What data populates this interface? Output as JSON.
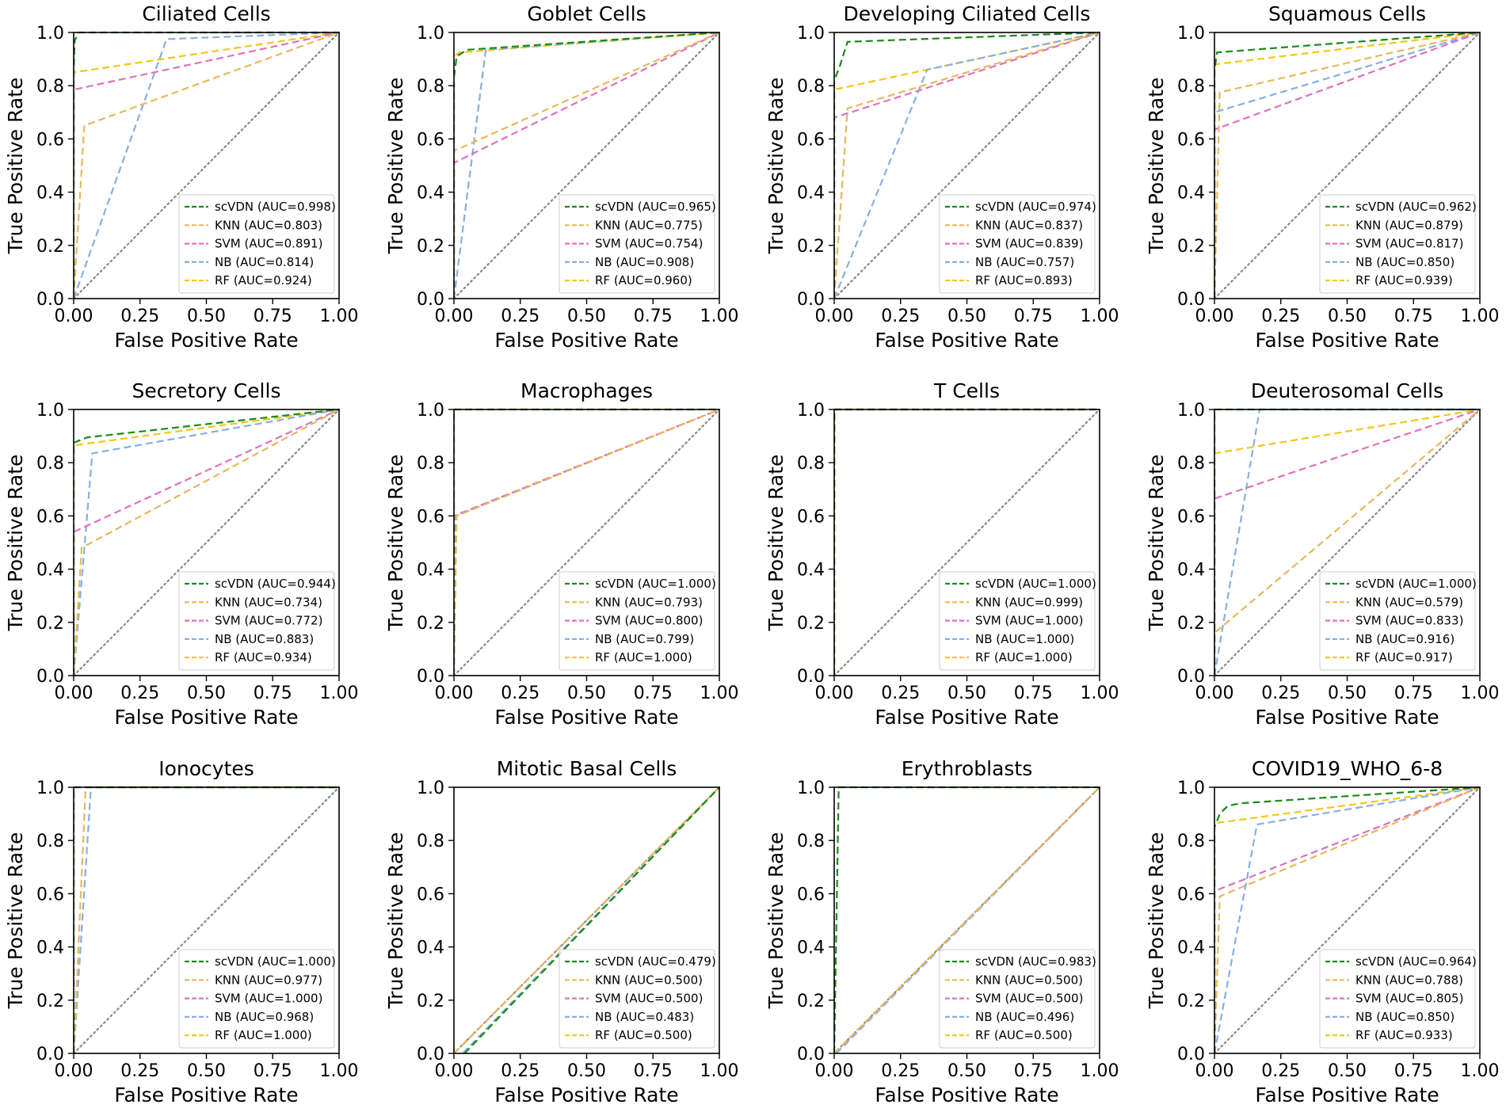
{
  "figure": {
    "xlabel": "False Positive Rate",
    "ylabel": "True Positive Rate",
    "xticks": [
      "0.00",
      "0.25",
      "0.50",
      "0.75",
      "1.00"
    ],
    "yticks": [
      "0.0",
      "0.2",
      "0.4",
      "0.6",
      "0.8",
      "1.0"
    ],
    "series_names": [
      "scVDN",
      "KNN",
      "SVM",
      "NB",
      "RF"
    ],
    "series_colors": [
      "#1a8a1a",
      "#e8b75a",
      "#e070c0",
      "#88aee0",
      "#f5c518"
    ],
    "diagonal_color": "#888888",
    "layout": {
      "rows": 3,
      "cols": 4
    }
  },
  "chart_data": [
    {
      "type": "line",
      "title": "Ciliated Cells",
      "xlim": [
        0,
        1
      ],
      "ylim": [
        0,
        1
      ],
      "grid": false,
      "legend_position": "lower-right",
      "series": [
        {
          "name": "scVDN",
          "auc": "0.998",
          "legend": "scVDN (AUC=0.998)",
          "x": [
            0,
            0,
            0.004,
            0.02,
            1
          ],
          "y": [
            0,
            0.86,
            0.97,
            1.0,
            1.0
          ]
        },
        {
          "name": "KNN",
          "auc": "0.803",
          "legend": "KNN (AUC=0.803)",
          "x": [
            0,
            0.04,
            1
          ],
          "y": [
            0,
            0.65,
            1.0
          ]
        },
        {
          "name": "SVM",
          "auc": "0.891",
          "legend": "SVM (AUC=0.891)",
          "x": [
            0,
            0,
            1
          ],
          "y": [
            0,
            0.785,
            1.0
          ]
        },
        {
          "name": "NB",
          "auc": "0.814",
          "legend": "NB (AUC=0.814)",
          "x": [
            0,
            0.35,
            1
          ],
          "y": [
            0,
            0.975,
            1.0
          ]
        },
        {
          "name": "RF",
          "auc": "0.924",
          "legend": "RF (AUC=0.924)",
          "x": [
            0,
            0,
            1
          ],
          "y": [
            0,
            0.85,
            1.0
          ]
        }
      ]
    },
    {
      "type": "line",
      "title": "Goblet Cells",
      "xlim": [
        0,
        1
      ],
      "ylim": [
        0,
        1
      ],
      "grid": false,
      "legend_position": "lower-right",
      "series": [
        {
          "name": "scVDN",
          "auc": "0.965",
          "legend": "scVDN (AUC=0.965)",
          "x": [
            0,
            0,
            0.01,
            0.05,
            1
          ],
          "y": [
            0,
            0.83,
            0.91,
            0.935,
            1.0
          ]
        },
        {
          "name": "KNN",
          "auc": "0.775",
          "legend": "KNN (AUC=0.775)",
          "x": [
            0,
            0,
            1
          ],
          "y": [
            0,
            0.555,
            1.0
          ]
        },
        {
          "name": "SVM",
          "auc": "0.754",
          "legend": "SVM (AUC=0.754)",
          "x": [
            0,
            0,
            1
          ],
          "y": [
            0,
            0.51,
            1.0
          ]
        },
        {
          "name": "NB",
          "auc": "0.908",
          "legend": "NB (AUC=0.908)",
          "x": [
            0,
            0.12,
            1
          ],
          "y": [
            0,
            0.935,
            1.0
          ]
        },
        {
          "name": "RF",
          "auc": "0.960",
          "legend": "RF (AUC=0.960)",
          "x": [
            0,
            0,
            0.02,
            1
          ],
          "y": [
            0,
            0.91,
            0.925,
            1.0
          ]
        }
      ]
    },
    {
      "type": "line",
      "title": "Developing Ciliated Cells",
      "xlim": [
        0,
        1
      ],
      "ylim": [
        0,
        1
      ],
      "grid": false,
      "legend_position": "lower-right",
      "series": [
        {
          "name": "scVDN",
          "auc": "0.974",
          "legend": "scVDN (AUC=0.974)",
          "x": [
            0,
            0,
            0.02,
            0.05,
            1
          ],
          "y": [
            0,
            0.82,
            0.87,
            0.965,
            1.0
          ]
        },
        {
          "name": "KNN",
          "auc": "0.837",
          "legend": "KNN (AUC=0.837)",
          "x": [
            0,
            0.05,
            1
          ],
          "y": [
            0,
            0.715,
            1.0
          ]
        },
        {
          "name": "SVM",
          "auc": "0.839",
          "legend": "SVM (AUC=0.839)",
          "x": [
            0,
            0,
            1
          ],
          "y": [
            0,
            0.68,
            1.0
          ]
        },
        {
          "name": "NB",
          "auc": "0.757",
          "legend": "NB (AUC=0.757)",
          "x": [
            0,
            0.35,
            1
          ],
          "y": [
            0,
            0.86,
            1.0
          ]
        },
        {
          "name": "RF",
          "auc": "0.893",
          "legend": "RF (AUC=0.893)",
          "x": [
            0,
            0,
            1
          ],
          "y": [
            0,
            0.785,
            1.0
          ]
        }
      ]
    },
    {
      "type": "line",
      "title": "Squamous Cells",
      "xlim": [
        0,
        1
      ],
      "ylim": [
        0,
        1
      ],
      "grid": false,
      "legend_position": "lower-right",
      "series": [
        {
          "name": "scVDN",
          "auc": "0.962",
          "legend": "scVDN (AUC=0.962)",
          "x": [
            0,
            0,
            0.01,
            1
          ],
          "y": [
            0,
            0.86,
            0.925,
            1.0
          ]
        },
        {
          "name": "KNN",
          "auc": "0.879",
          "legend": "KNN (AUC=0.879)",
          "x": [
            0,
            0.02,
            1
          ],
          "y": [
            0,
            0.775,
            1.0
          ]
        },
        {
          "name": "SVM",
          "auc": "0.817",
          "legend": "SVM (AUC=0.817)",
          "x": [
            0,
            0,
            1
          ],
          "y": [
            0,
            0.635,
            1.0
          ]
        },
        {
          "name": "NB",
          "auc": "0.850",
          "legend": "NB (AUC=0.850)",
          "x": [
            0,
            0,
            1
          ],
          "y": [
            0,
            0.7,
            1.0
          ]
        },
        {
          "name": "RF",
          "auc": "0.939",
          "legend": "RF (AUC=0.939)",
          "x": [
            0,
            0,
            1
          ],
          "y": [
            0,
            0.88,
            1.0
          ]
        }
      ]
    },
    {
      "type": "line",
      "title": "Secretory Cells",
      "xlim": [
        0,
        1
      ],
      "ylim": [
        0,
        1
      ],
      "grid": false,
      "legend_position": "lower-right",
      "series": [
        {
          "name": "scVDN",
          "auc": "0.944",
          "legend": "scVDN (AUC=0.944)",
          "x": [
            0,
            0,
            0.05,
            1
          ],
          "y": [
            0,
            0.875,
            0.895,
            1.0
          ]
        },
        {
          "name": "KNN",
          "auc": "0.734",
          "legend": "KNN (AUC=0.734)",
          "x": [
            0,
            0.03,
            1
          ],
          "y": [
            0,
            0.48,
            1.0
          ]
        },
        {
          "name": "SVM",
          "auc": "0.772",
          "legend": "SVM (AUC=0.772)",
          "x": [
            0,
            0,
            1
          ],
          "y": [
            0,
            0.54,
            1.0
          ]
        },
        {
          "name": "NB",
          "auc": "0.883",
          "legend": "NB (AUC=0.883)",
          "x": [
            0,
            0.07,
            1
          ],
          "y": [
            0,
            0.835,
            1.0
          ]
        },
        {
          "name": "RF",
          "auc": "0.934",
          "legend": "RF (AUC=0.934)",
          "x": [
            0,
            0,
            1
          ],
          "y": [
            0,
            0.865,
            1.0
          ]
        }
      ]
    },
    {
      "type": "line",
      "title": "Macrophages",
      "xlim": [
        0,
        1
      ],
      "ylim": [
        0,
        1
      ],
      "grid": false,
      "legend_position": "lower-right",
      "series": [
        {
          "name": "scVDN",
          "auc": "1.000",
          "legend": "scVDN (AUC=1.000)",
          "x": [
            0,
            0,
            1
          ],
          "y": [
            0,
            1.0,
            1.0
          ]
        },
        {
          "name": "KNN",
          "auc": "0.793",
          "legend": "KNN (AUC=0.793)",
          "x": [
            0,
            0.01,
            1
          ],
          "y": [
            0,
            0.6,
            1.0
          ]
        },
        {
          "name": "SVM",
          "auc": "0.800",
          "legend": "SVM (AUC=0.800)",
          "x": [
            0,
            0,
            1
          ],
          "y": [
            0,
            0.6,
            1.0
          ]
        },
        {
          "name": "NB",
          "auc": "0.799",
          "legend": "NB (AUC=0.799)",
          "x": [
            0,
            0.005,
            1
          ],
          "y": [
            0,
            0.6,
            1.0
          ]
        },
        {
          "name": "RF",
          "auc": "1.000",
          "legend": "RF (AUC=1.000)",
          "x": [
            0,
            0,
            1
          ],
          "y": [
            0,
            1.0,
            1.0
          ]
        }
      ]
    },
    {
      "type": "line",
      "title": "T Cells",
      "xlim": [
        0,
        1
      ],
      "ylim": [
        0,
        1
      ],
      "grid": false,
      "legend_position": "lower-right",
      "series": [
        {
          "name": "scVDN",
          "auc": "1.000",
          "legend": "scVDN (AUC=1.000)",
          "x": [
            0,
            0,
            1
          ],
          "y": [
            0,
            1.0,
            1.0
          ]
        },
        {
          "name": "KNN",
          "auc": "0.999",
          "legend": "KNN (AUC=0.999)",
          "x": [
            0,
            0.002,
            1
          ],
          "y": [
            0,
            1.0,
            1.0
          ]
        },
        {
          "name": "SVM",
          "auc": "1.000",
          "legend": "SVM (AUC=1.000)",
          "x": [
            0,
            0,
            1
          ],
          "y": [
            0,
            1.0,
            1.0
          ]
        },
        {
          "name": "NB",
          "auc": "1.000",
          "legend": "NB (AUC=1.000)",
          "x": [
            0,
            0,
            1
          ],
          "y": [
            0,
            1.0,
            1.0
          ]
        },
        {
          "name": "RF",
          "auc": "1.000",
          "legend": "RF (AUC=1.000)",
          "x": [
            0,
            0,
            1
          ],
          "y": [
            0,
            1.0,
            1.0
          ]
        }
      ]
    },
    {
      "type": "line",
      "title": "Deuterosomal Cells",
      "xlim": [
        0,
        1
      ],
      "ylim": [
        0,
        1
      ],
      "grid": false,
      "legend_position": "lower-right",
      "series": [
        {
          "name": "scVDN",
          "auc": "1.000",
          "legend": "scVDN (AUC=1.000)",
          "x": [
            0,
            0,
            1
          ],
          "y": [
            0,
            1.0,
            1.0
          ]
        },
        {
          "name": "KNN",
          "auc": "0.579",
          "legend": "KNN (AUC=0.579)",
          "x": [
            0,
            0,
            1
          ],
          "y": [
            0,
            0.16,
            1.0
          ]
        },
        {
          "name": "SVM",
          "auc": "0.833",
          "legend": "SVM (AUC=0.833)",
          "x": [
            0,
            0,
            1
          ],
          "y": [
            0,
            0.665,
            1.0
          ]
        },
        {
          "name": "NB",
          "auc": "0.916",
          "legend": "NB (AUC=0.916)",
          "x": [
            0,
            0.17,
            1
          ],
          "y": [
            0,
            1.0,
            1.0
          ]
        },
        {
          "name": "RF",
          "auc": "0.917",
          "legend": "RF (AUC=0.917)",
          "x": [
            0,
            0,
            1
          ],
          "y": [
            0,
            0.835,
            1.0
          ]
        }
      ]
    },
    {
      "type": "line",
      "title": "Ionocytes",
      "xlim": [
        0,
        1
      ],
      "ylim": [
        0,
        1
      ],
      "grid": false,
      "legend_position": "lower-right",
      "series": [
        {
          "name": "scVDN",
          "auc": "1.000",
          "legend": "scVDN (AUC=1.000)",
          "x": [
            0,
            0,
            1
          ],
          "y": [
            0,
            1.0,
            1.0
          ]
        },
        {
          "name": "KNN",
          "auc": "0.977",
          "legend": "KNN (AUC=0.977)",
          "x": [
            0,
            0.045,
            1
          ],
          "y": [
            0,
            1.0,
            1.0
          ]
        },
        {
          "name": "SVM",
          "auc": "1.000",
          "legend": "SVM (AUC=1.000)",
          "x": [
            0,
            0,
            1
          ],
          "y": [
            0,
            1.0,
            1.0
          ]
        },
        {
          "name": "NB",
          "auc": "0.968",
          "legend": "NB (AUC=0.968)",
          "x": [
            0,
            0.065,
            1
          ],
          "y": [
            0,
            1.0,
            1.0
          ]
        },
        {
          "name": "RF",
          "auc": "1.000",
          "legend": "RF (AUC=1.000)",
          "x": [
            0,
            0,
            1
          ],
          "y": [
            0,
            1.0,
            1.0
          ]
        }
      ]
    },
    {
      "type": "line",
      "title": "Mitotic Basal Cells",
      "xlim": [
        0,
        1
      ],
      "ylim": [
        0,
        1
      ],
      "grid": false,
      "legend_position": "lower-right",
      "series": [
        {
          "name": "scVDN",
          "auc": "0.479",
          "legend": "scVDN (AUC=0.479)",
          "x": [
            0.04,
            1
          ],
          "y": [
            0,
            1.0
          ]
        },
        {
          "name": "KNN",
          "auc": "0.500",
          "legend": "KNN (AUC=0.500)",
          "x": [
            0,
            1
          ],
          "y": [
            0,
            1.0
          ]
        },
        {
          "name": "SVM",
          "auc": "0.500",
          "legend": "SVM (AUC=0.500)",
          "x": [
            0,
            1
          ],
          "y": [
            0,
            1.0
          ]
        },
        {
          "name": "NB",
          "auc": "0.483",
          "legend": "NB (AUC=0.483)",
          "x": [
            0.033,
            1
          ],
          "y": [
            0,
            1.0
          ]
        },
        {
          "name": "RF",
          "auc": "0.500",
          "legend": "RF (AUC=0.500)",
          "x": [
            0,
            1
          ],
          "y": [
            0,
            1.0
          ]
        }
      ]
    },
    {
      "type": "line",
      "title": "Erythroblasts",
      "xlim": [
        0,
        1
      ],
      "ylim": [
        0,
        1
      ],
      "grid": false,
      "legend_position": "lower-right",
      "series": [
        {
          "name": "scVDN",
          "auc": "0.983",
          "legend": "scVDN (AUC=0.983)",
          "x": [
            0,
            0.017,
            1
          ],
          "y": [
            0,
            1.0,
            1.0
          ]
        },
        {
          "name": "KNN",
          "auc": "0.500",
          "legend": "KNN (AUC=0.500)",
          "x": [
            0,
            1
          ],
          "y": [
            0,
            1.0
          ]
        },
        {
          "name": "SVM",
          "auc": "0.500",
          "legend": "SVM (AUC=0.500)",
          "x": [
            0,
            1
          ],
          "y": [
            0,
            1.0
          ]
        },
        {
          "name": "NB",
          "auc": "0.496",
          "legend": "NB (AUC=0.496)",
          "x": [
            0.008,
            1
          ],
          "y": [
            0,
            1.0
          ]
        },
        {
          "name": "RF",
          "auc": "0.500",
          "legend": "RF (AUC=0.500)",
          "x": [
            0,
            1
          ],
          "y": [
            0,
            1.0
          ]
        }
      ]
    },
    {
      "type": "line",
      "title": "COVID19_WHO_6-8",
      "xlim": [
        0,
        1
      ],
      "ylim": [
        0,
        1
      ],
      "grid": false,
      "legend_position": "lower-right",
      "series": [
        {
          "name": "scVDN",
          "auc": "0.964",
          "legend": "scVDN (AUC=0.964)",
          "x": [
            0,
            0,
            0.02,
            0.05,
            0.1,
            1
          ],
          "y": [
            0,
            0.85,
            0.9,
            0.93,
            0.94,
            1.0
          ]
        },
        {
          "name": "KNN",
          "auc": "0.788",
          "legend": "KNN (AUC=0.788)",
          "x": [
            0,
            0.02,
            1
          ],
          "y": [
            0,
            0.59,
            1.0
          ]
        },
        {
          "name": "SVM",
          "auc": "0.805",
          "legend": "SVM (AUC=0.805)",
          "x": [
            0,
            0,
            1
          ],
          "y": [
            0,
            0.61,
            1.0
          ]
        },
        {
          "name": "NB",
          "auc": "0.850",
          "legend": "NB (AUC=0.850)",
          "x": [
            0,
            0.16,
            1
          ],
          "y": [
            0,
            0.86,
            1.0
          ]
        },
        {
          "name": "RF",
          "auc": "0.933",
          "legend": "RF (AUC=0.933)",
          "x": [
            0,
            0,
            1
          ],
          "y": [
            0,
            0.865,
            1.0
          ]
        }
      ]
    }
  ]
}
